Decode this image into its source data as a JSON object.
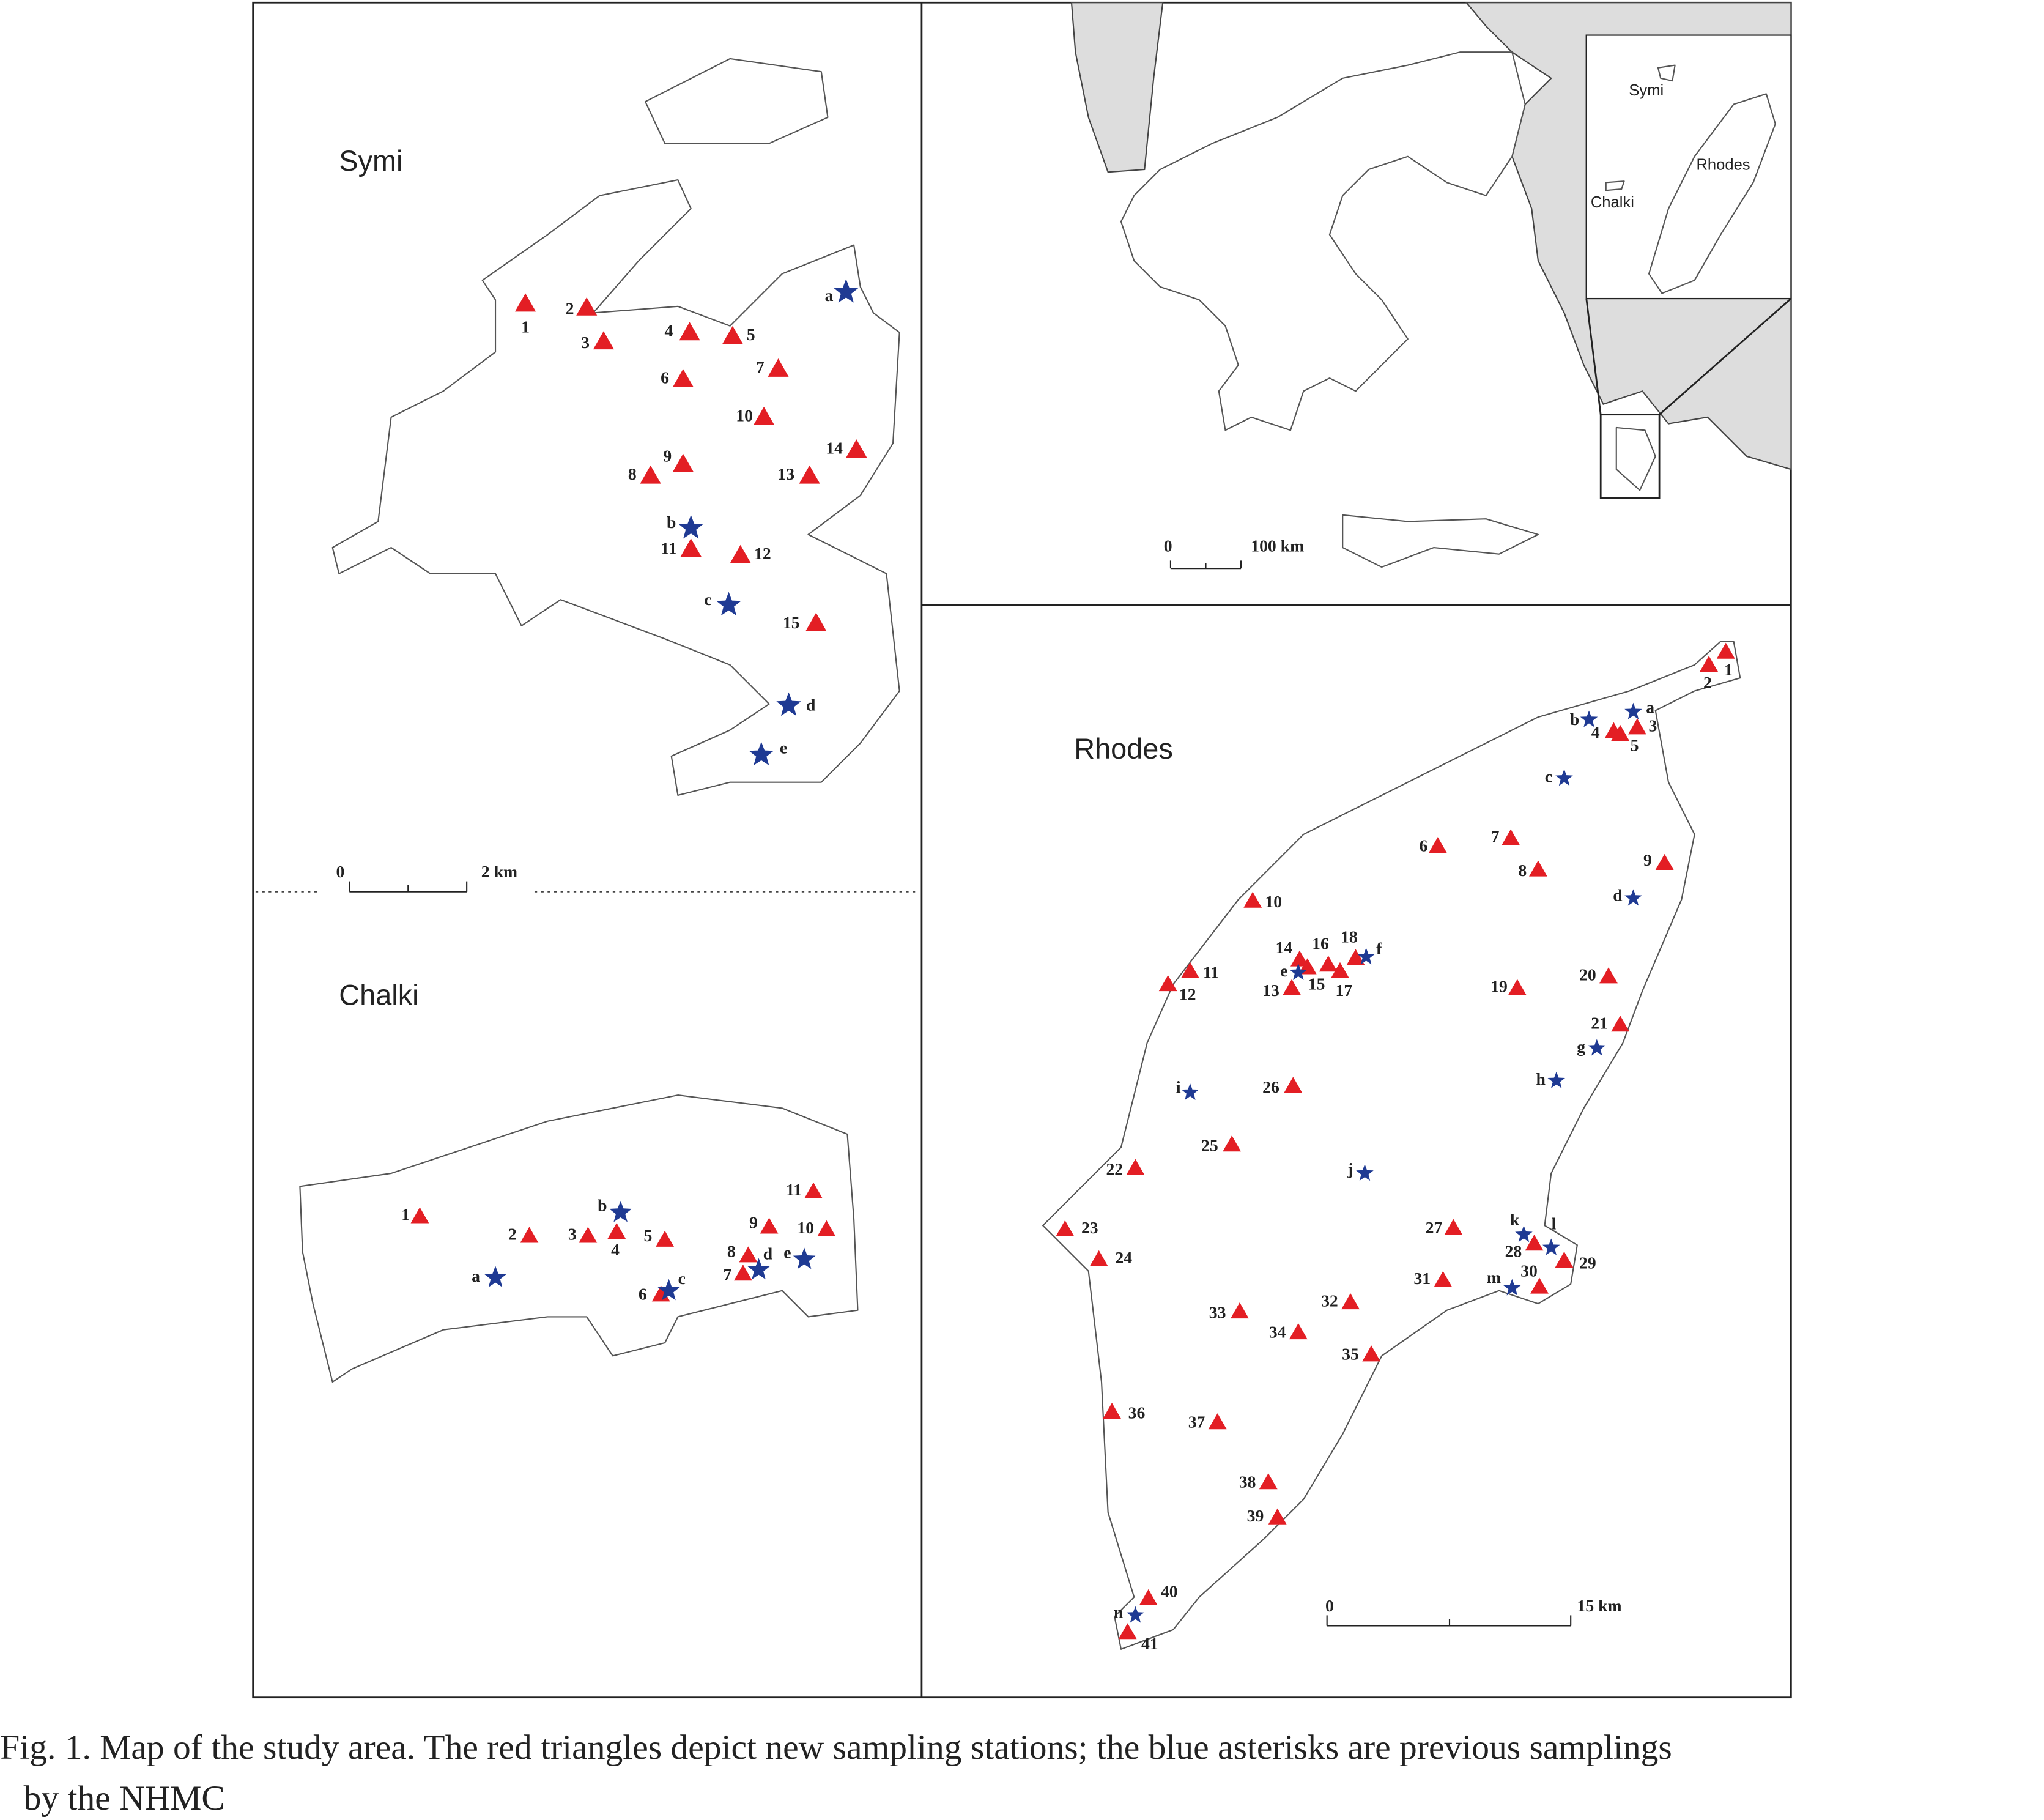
{
  "panels": {
    "symi": {
      "title": "Symi",
      "stations": [
        "1",
        "2",
        "3",
        "4",
        "5",
        "6",
        "7",
        "8",
        "9",
        "10",
        "11",
        "12",
        "13",
        "14",
        "15"
      ],
      "previous": [
        "a",
        "b",
        "c",
        "d",
        "e"
      ],
      "scale": [
        "0",
        "2 km"
      ]
    },
    "chalki": {
      "title": "Chalki",
      "stations": [
        "1",
        "2",
        "3",
        "4",
        "5",
        "6",
        "7",
        "8",
        "9",
        "10",
        "11"
      ],
      "previous": [
        "a",
        "b",
        "c",
        "d",
        "e"
      ]
    },
    "rhodes": {
      "title": "Rhodes",
      "stations": [
        "1",
        "2",
        "3",
        "4",
        "5",
        "6",
        "7",
        "8",
        "9",
        "10",
        "11",
        "12",
        "13",
        "14",
        "15",
        "16",
        "17",
        "18",
        "19",
        "20",
        "21",
        "22",
        "23",
        "24",
        "25",
        "26",
        "27",
        "28",
        "29",
        "30",
        "31",
        "32",
        "33",
        "34",
        "35",
        "36",
        "37",
        "38",
        "39",
        "40",
        "41"
      ],
      "previous": [
        "a",
        "b",
        "c",
        "d",
        "e",
        "f",
        "g",
        "h",
        "i",
        "j",
        "k",
        "l",
        "m",
        "n"
      ],
      "scale": [
        "0",
        "15 km"
      ]
    },
    "greece": {
      "scale": [
        "0",
        "100 km"
      ],
      "inset_labels": [
        "Symi",
        "Rhodes",
        "Chalki"
      ]
    }
  },
  "caption": [
    "Fig. 1. Map of the study area. The red triangles depict new sampling stations; the blue asterisks are previous samplings",
    "by the NHMC"
  ]
}
